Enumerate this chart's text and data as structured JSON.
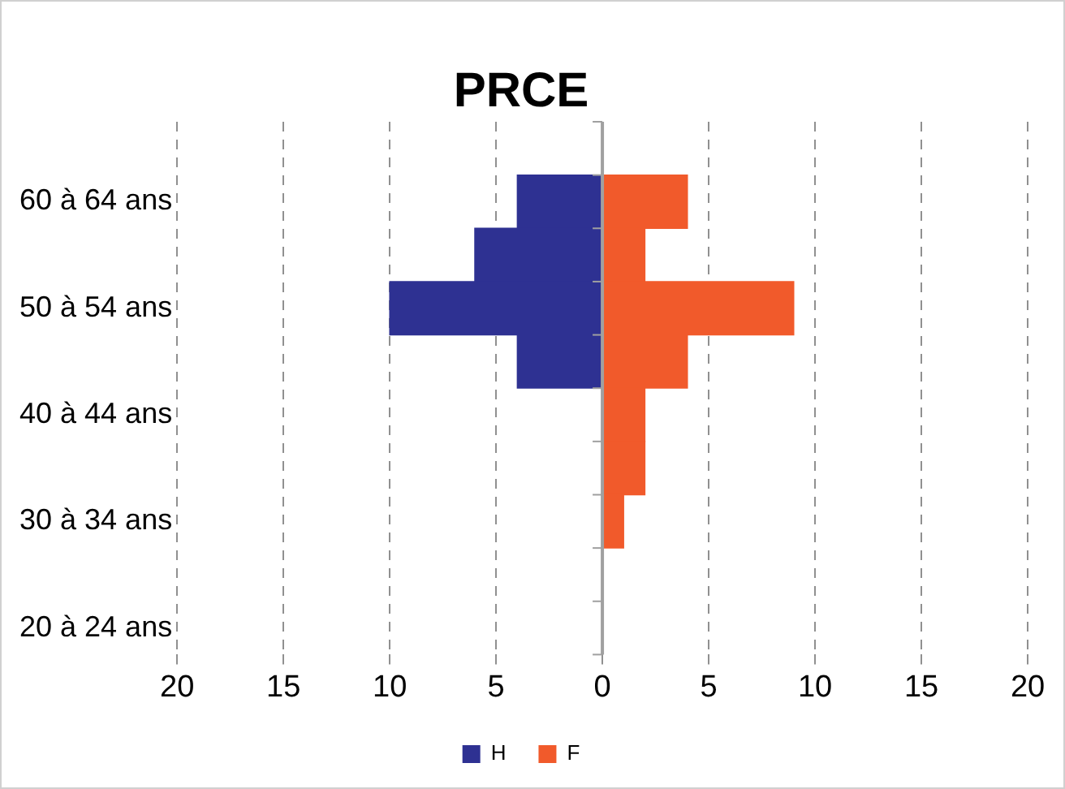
{
  "chart_data": {
    "type": "bar",
    "orientation": "horizontal",
    "stacked": true,
    "title": "PRCE",
    "categories": [
      null,
      "60 à 64 ans",
      null,
      "50 à 54 ans",
      null,
      "40 à 44 ans",
      null,
      "30 à 34 ans",
      null,
      "20 à 24 ans"
    ],
    "series": [
      {
        "name": "H",
        "color": "#2e3192",
        "values": [
          null,
          -4,
          -6,
          -10,
          -4,
          null,
          null,
          null,
          null,
          null
        ]
      },
      {
        "name": "F",
        "color": "#f15a2b",
        "values": [
          null,
          4,
          2,
          9,
          4,
          2,
          2,
          1,
          null,
          null
        ]
      }
    ],
    "xlim": [
      -20,
      20
    ],
    "xticks": [
      {
        "value": -20,
        "label": "20"
      },
      {
        "value": -15,
        "label": "15"
      },
      {
        "value": -10,
        "label": "10"
      },
      {
        "value": -5,
        "label": "5"
      },
      0,
      5,
      10,
      15,
      20
    ],
    "grid": "x",
    "legend": "bottom"
  }
}
